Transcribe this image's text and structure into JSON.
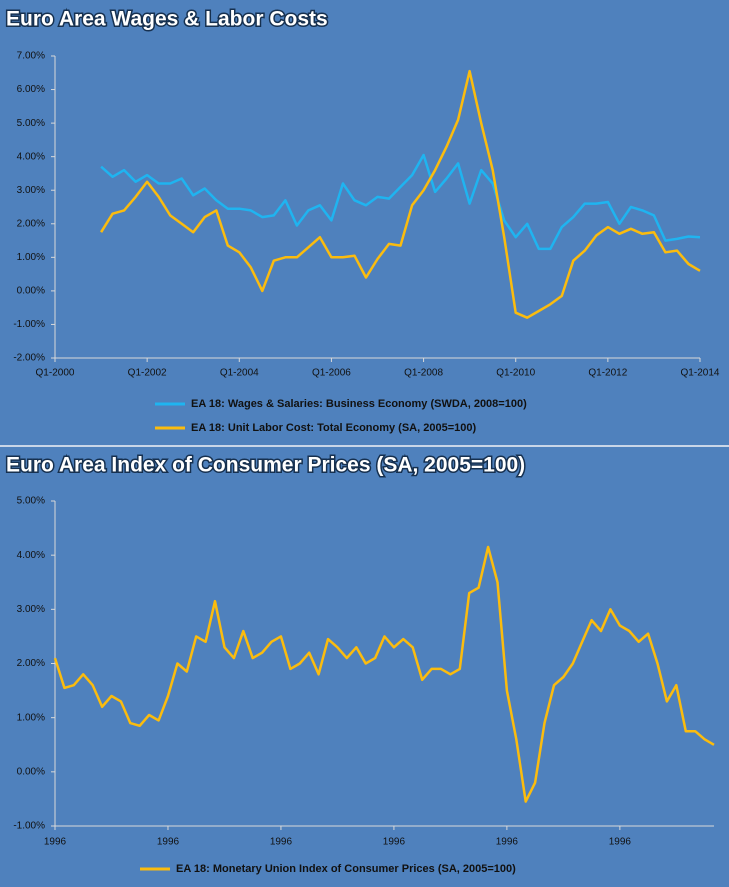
{
  "chart_data": [
    {
      "type": "line",
      "title": "Euro Area Wages & Labor Costs",
      "categories": [
        "Q1-2000",
        null,
        null,
        null,
        null,
        null,
        null,
        null,
        "Q1-2002",
        null,
        null,
        null,
        null,
        null,
        null,
        null,
        "Q1-2004",
        null,
        null,
        null,
        null,
        null,
        null,
        null,
        "Q1-2006",
        null,
        null,
        null,
        null,
        null,
        null,
        null,
        "Q1-2008",
        null,
        null,
        null,
        null,
        null,
        null,
        null,
        "Q1-2010",
        null,
        null,
        null,
        null,
        null,
        null,
        null,
        "Q1-2012",
        null,
        null,
        null,
        null,
        null,
        null,
        null,
        "Q1-2014"
      ],
      "series": [
        {
          "name": "EA 18: Wages & Salaries: Business Economy (SWDA, 2008=100)",
          "color": "#1fb4f0",
          "values": [
            null,
            null,
            null,
            null,
            3.7,
            3.4,
            3.6,
            3.25,
            3.45,
            3.2,
            3.2,
            3.35,
            2.85,
            3.05,
            2.7,
            2.45,
            2.45,
            2.4,
            2.2,
            2.25,
            2.7,
            1.95,
            2.4,
            2.55,
            2.1,
            3.2,
            2.7,
            2.55,
            2.8,
            2.75,
            3.1,
            3.45,
            4.05,
            2.95,
            3.35,
            3.8,
            2.6,
            3.6,
            3.2,
            2.1,
            1.6,
            2.0,
            1.25,
            1.25,
            1.9,
            2.2,
            2.6,
            2.6,
            2.65,
            2.0,
            2.5,
            2.4,
            2.25,
            1.5,
            1.55,
            1.62,
            1.6
          ]
        },
        {
          "name": "EA 18: Unit Labor Cost: Total Economy (SA, 2005=100)",
          "color": "#fbbc0e",
          "values": [
            null,
            null,
            null,
            null,
            1.75,
            2.3,
            2.4,
            2.8,
            3.25,
            2.8,
            2.25,
            2.0,
            1.75,
            2.2,
            2.4,
            1.35,
            1.15,
            0.7,
            0.0,
            0.9,
            1.0,
            1.0,
            1.3,
            1.6,
            1.0,
            1.0,
            1.05,
            0.4,
            0.95,
            1.4,
            1.35,
            2.55,
            3.0,
            3.6,
            4.3,
            5.1,
            6.55,
            5.0,
            3.6,
            1.6,
            -0.65,
            -0.8,
            -0.6,
            -0.4,
            -0.15,
            0.9,
            1.2,
            1.65,
            1.9,
            1.7,
            1.85,
            1.7,
            1.75,
            1.15,
            1.2,
            0.8,
            0.6
          ]
        }
      ],
      "ylim": [
        -2,
        7
      ],
      "yticks": [
        {
          "value": -2,
          "label": "-2.00%"
        },
        {
          "value": -1,
          "label": "-1.00%"
        },
        {
          "value": 0,
          "label": "0.00%"
        },
        {
          "value": 1,
          "label": "1.00%"
        },
        {
          "value": 2,
          "label": "2.00%"
        },
        {
          "value": 3,
          "label": "3.00%"
        },
        {
          "value": 4,
          "label": "4.00%"
        },
        {
          "value": 5,
          "label": "5.00%"
        },
        {
          "value": 6,
          "label": "6.00%"
        },
        {
          "value": 7,
          "label": "7.00%"
        }
      ]
    },
    {
      "type": "line",
      "title": "Euro Area Index of Consumer Prices (SA, 2005=100)",
      "categories": [
        "1996",
        null,
        null,
        null,
        null,
        null,
        null,
        null,
        null,
        null,
        null,
        null,
        "1996",
        null,
        null,
        null,
        null,
        null,
        null,
        null,
        null,
        null,
        null,
        null,
        "1996",
        null,
        null,
        null,
        null,
        null,
        null,
        null,
        null,
        null,
        null,
        null,
        "1996",
        null,
        null,
        null,
        null,
        null,
        null,
        null,
        null,
        null,
        null,
        null,
        "1996",
        null,
        null,
        null,
        null,
        null,
        null,
        null,
        null,
        null,
        null,
        null,
        "1996",
        null,
        null,
        null,
        null,
        null,
        null,
        null,
        null,
        null,
        null
      ],
      "series": [
        {
          "name": "EA 18: Monetary Union Index of Consumer Prices (SA, 2005=100)",
          "color": "#fbbc0e",
          "values": [
            2.1,
            1.55,
            1.6,
            1.8,
            1.6,
            1.2,
            1.4,
            1.3,
            0.9,
            0.85,
            1.05,
            0.95,
            1.4,
            2.0,
            1.85,
            2.5,
            2.4,
            3.15,
            2.3,
            2.1,
            2.6,
            2.1,
            2.2,
            2.4,
            2.5,
            1.9,
            2.0,
            2.2,
            1.8,
            2.45,
            2.3,
            2.1,
            2.3,
            2.0,
            2.1,
            2.5,
            2.3,
            2.45,
            2.3,
            1.7,
            1.9,
            1.9,
            1.8,
            1.9,
            3.3,
            3.4,
            4.15,
            3.5,
            1.5,
            0.6,
            -0.55,
            -0.2,
            0.9,
            1.6,
            1.75,
            2.0,
            2.4,
            2.8,
            2.6,
            3.0,
            2.7,
            2.6,
            2.4,
            2.55,
            2.0,
            1.3,
            1.6,
            0.75,
            0.75,
            0.6,
            0.5
          ]
        }
      ],
      "ylim": [
        -1,
        5
      ],
      "yticks": [
        {
          "value": -1,
          "label": "-1.00%"
        },
        {
          "value": 0,
          "label": "0.00%"
        },
        {
          "value": 1,
          "label": "1.00%"
        },
        {
          "value": 2,
          "label": "2.00%"
        },
        {
          "value": 3,
          "label": "3.00%"
        },
        {
          "value": 4,
          "label": "4.00%"
        },
        {
          "value": 5,
          "label": "5.00%"
        }
      ]
    }
  ]
}
